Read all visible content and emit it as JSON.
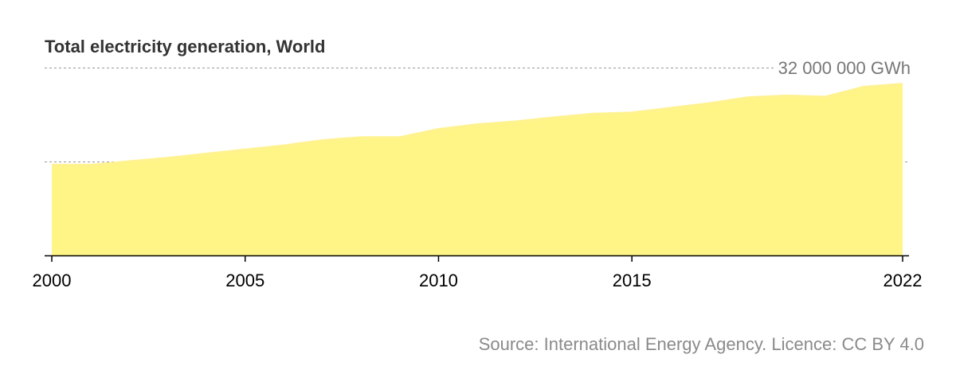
{
  "chart_data": {
    "type": "area",
    "title": "Total electricity generation, World",
    "xlabel": "",
    "ylabel": "",
    "unit": "GWh",
    "x": [
      2000,
      2001,
      2002,
      2003,
      2004,
      2005,
      2006,
      2007,
      2008,
      2009,
      2010,
      2011,
      2012,
      2013,
      2014,
      2015,
      2016,
      2017,
      2018,
      2019,
      2020,
      2021,
      2022
    ],
    "values": [
      15400000,
      15400000,
      16000000,
      16600000,
      17300000,
      18000000,
      18700000,
      19600000,
      20100000,
      20100000,
      21500000,
      22300000,
      22800000,
      23500000,
      24100000,
      24300000,
      25100000,
      25900000,
      26900000,
      27200000,
      27000000,
      28700000,
      29200000
    ],
    "ylim": [
      0,
      32000000
    ],
    "gridlines": [
      16000000,
      32000000
    ],
    "grid_label_text": "32 000 000 GWh",
    "x_tick_labels": [
      "2000",
      "2005",
      "2010",
      "2015",
      "2022"
    ],
    "x_ticks": [
      2000,
      2005,
      2010,
      2015,
      2022
    ],
    "colors": {
      "area_fill": "#fff587",
      "area_stroke": "#fff28f",
      "gridline": "#999999",
      "axis": "#000000"
    }
  },
  "source": "Source: International Energy Agency. Licence: CC BY 4.0"
}
